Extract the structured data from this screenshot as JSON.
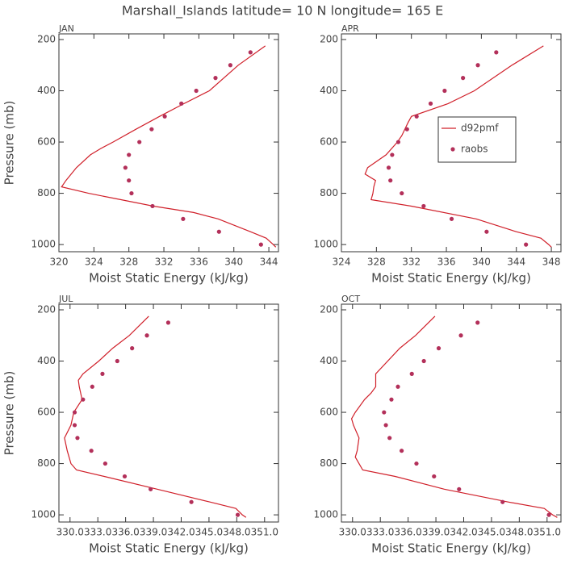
{
  "title": "Marshall_Islands  latitude= 10 N longitude= 165 E",
  "chart_data": [
    {
      "type": "line",
      "title": "JAN",
      "xlabel": "Moist Static Energy (kJ/kg)",
      "ylabel": "Pressure (mb)",
      "xlim": [
        320,
        345.1
      ],
      "xticks": [
        320,
        324,
        328,
        332,
        336,
        340,
        344
      ],
      "ylim": [
        1028,
        178
      ],
      "yticks": [
        200,
        400,
        600,
        800,
        1000
      ],
      "series": [
        {
          "mark": "line",
          "color": "#d0202a",
          "x": [
            343.6,
            340.5,
            337.2,
            334.3,
            331.5,
            328.8,
            326.2,
            324.8,
            323.6,
            322.0,
            320.8,
            320.3,
            323.4,
            327.1,
            330.8,
            335.4,
            338.2,
            341.9,
            343.7,
            344.5,
            344.8
          ],
          "values": [
            225,
            300,
            400,
            450,
            500,
            550,
            600,
            625,
            650,
            700,
            750,
            775,
            800,
            825,
            850,
            875,
            900,
            950,
            975,
            1000,
            1010
          ]
        },
        {
          "mark": "dot",
          "color": "#b3305a",
          "x": [
            341.9,
            339.6,
            337.9,
            335.7,
            334.0,
            332.1,
            330.6,
            329.2,
            328.0,
            327.6,
            328.0,
            328.3,
            330.7,
            334.2,
            338.3,
            343.1
          ],
          "values": [
            250,
            300,
            350,
            400,
            450,
            500,
            550,
            600,
            650,
            700,
            750,
            800,
            850,
            900,
            950,
            1000
          ]
        }
      ]
    },
    {
      "type": "line",
      "title": "APR",
      "xlabel": "Moist Static Energy (kJ/kg)",
      "xlim": [
        324,
        349.1
      ],
      "xticks": [
        324,
        328,
        332,
        336,
        340,
        344,
        348
      ],
      "ylim": [
        1028,
        178
      ],
      "yticks": [
        200,
        400,
        600,
        800,
        1000
      ],
      "legend": "center-right",
      "series": [
        {
          "name": "d92pmf",
          "mark": "line",
          "color": "#d0202a",
          "x": [
            347.1,
            343.5,
            339.2,
            336.2,
            332.0,
            331.6,
            330.9,
            330.4,
            329.1,
            327.0,
            326.7,
            327.9,
            327.7,
            327.6,
            327.4,
            332.0,
            339.4,
            344.0,
            346.8,
            347.7,
            348.0
          ],
          "values": [
            225,
            300,
            400,
            450,
            500,
            525,
            575,
            600,
            650,
            700,
            725,
            750,
            775,
            800,
            825,
            850,
            900,
            950,
            975,
            1000,
            1010
          ]
        },
        {
          "name": "raobs",
          "mark": "dot",
          "color": "#b3305a",
          "x": [
            341.7,
            339.6,
            337.9,
            335.8,
            334.2,
            332.6,
            331.5,
            330.5,
            329.8,
            329.4,
            329.6,
            330.9,
            333.4,
            336.6,
            340.6,
            345.1
          ],
          "values": [
            250,
            300,
            350,
            400,
            450,
            500,
            550,
            600,
            650,
            700,
            750,
            800,
            850,
            900,
            950,
            1000
          ]
        }
      ]
    },
    {
      "type": "line",
      "title": "JUL",
      "xlabel": "Moist Static Energy (kJ/kg)",
      "ylabel": "Pressure (mb)",
      "xlim": [
        328.8,
        352.5
      ],
      "xticks": [
        {
          "value": 330,
          "label": "330.0"
        },
        {
          "value": 333,
          "label": "333.0"
        },
        {
          "value": 336,
          "label": "336.0"
        },
        {
          "value": 339,
          "label": "339.0"
        },
        {
          "value": 342,
          "label": "342.0"
        },
        {
          "value": 345,
          "label": "345.0"
        },
        {
          "value": 348,
          "label": "348.0"
        },
        {
          "value": 351,
          "label": "351.0"
        }
      ],
      "ylim": [
        1028,
        178
      ],
      "yticks": [
        200,
        400,
        600,
        800,
        1000
      ],
      "series": [
        {
          "mark": "line",
          "color": "#d0202a",
          "x": [
            338.5,
            336.4,
            334.6,
            333.1,
            331.4,
            330.9,
            331.0,
            331.3,
            330.4,
            330.1,
            329.4,
            329.7,
            330.1,
            330.7,
            333.7,
            339.4,
            345.1,
            347.9,
            348.6,
            349.0
          ],
          "values": [
            225,
            300,
            350,
            400,
            450,
            475,
            500,
            550,
            600,
            650,
            700,
            750,
            800,
            825,
            850,
            900,
            950,
            975,
            1000,
            1010
          ]
        },
        {
          "mark": "dot",
          "color": "#b3305a",
          "x": [
            340.6,
            338.3,
            336.7,
            335.1,
            333.5,
            332.4,
            331.4,
            330.5,
            330.5,
            330.8,
            332.3,
            333.8,
            335.9,
            338.7,
            343.1,
            348.1
          ],
          "values": [
            250,
            300,
            350,
            400,
            450,
            500,
            550,
            600,
            650,
            700,
            750,
            800,
            850,
            900,
            950,
            1000
          ]
        }
      ]
    },
    {
      "type": "line",
      "title": "OCT",
      "xlabel": "Moist Static Energy (kJ/kg)",
      "xlim": [
        328.8,
        352.5
      ],
      "xticks": [
        {
          "value": 330,
          "label": "330.0"
        },
        {
          "value": 333,
          "label": "333.0"
        },
        {
          "value": 336,
          "label": "336.0"
        },
        {
          "value": 339,
          "label": "339.0"
        },
        {
          "value": 342,
          "label": "342.0"
        },
        {
          "value": 345,
          "label": "345.0"
        },
        {
          "value": 348,
          "label": "348.0"
        },
        {
          "value": 351,
          "label": "351.0"
        }
      ],
      "ylim": [
        1028,
        178
      ],
      "yticks": [
        200,
        400,
        600,
        800,
        1000
      ],
      "series": [
        {
          "mark": "line",
          "color": "#d0202a",
          "x": [
            338.9,
            336.8,
            335.1,
            332.5,
            332.5,
            332.0,
            331.3,
            330.3,
            329.9,
            330.1,
            330.7,
            330.5,
            330.3,
            330.7,
            331.1,
            334.6,
            339.9,
            346.8,
            350.7,
            351.6,
            352.1
          ],
          "values": [
            225,
            300,
            350,
            450,
            500,
            525,
            550,
            600,
            625,
            650,
            700,
            750,
            775,
            800,
            825,
            850,
            900,
            950,
            975,
            1000,
            1010
          ]
        },
        {
          "mark": "dot",
          "color": "#b3305a",
          "x": [
            343.5,
            341.7,
            339.3,
            337.7,
            336.4,
            334.9,
            334.2,
            333.4,
            333.6,
            334.0,
            335.3,
            336.9,
            338.8,
            341.5,
            346.2,
            351.2
          ],
          "values": [
            250,
            300,
            350,
            400,
            450,
            500,
            550,
            600,
            650,
            700,
            750,
            800,
            850,
            900,
            950,
            1000
          ]
        }
      ]
    }
  ]
}
